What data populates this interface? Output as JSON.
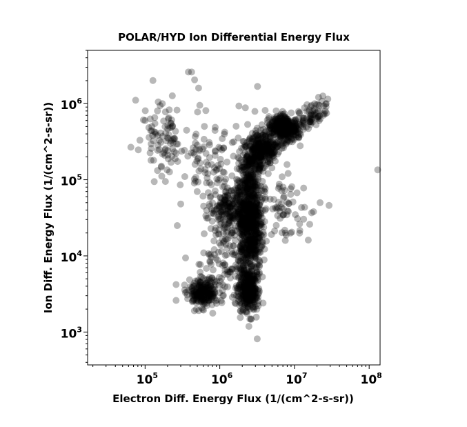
{
  "chart_data": {
    "type": "scatter",
    "title": "POLAR/HYD  Ion Differential Energy Flux",
    "xlabel": "Electron Diff. Energy Flux (1/(cm^2-s-sr))",
    "ylabel": "Ion Diff. Energy Flux (1/(cm^2-s-sr))",
    "xscale": "log",
    "yscale": "log",
    "xlim": [
      17000,
      140000000
    ],
    "ylim": [
      370,
      5000000
    ],
    "x_ticks": [
      {
        "value": 100000,
        "base": "10",
        "exp": "5"
      },
      {
        "value": 1000000,
        "base": "10",
        "exp": "6"
      },
      {
        "value": 10000000,
        "base": "10",
        "exp": "7"
      },
      {
        "value": 100000000,
        "base": "10",
        "exp": "8"
      }
    ],
    "y_ticks": [
      {
        "value": 1000,
        "base": "10",
        "exp": "3"
      },
      {
        "value": 10000,
        "base": "10",
        "exp": "4"
      },
      {
        "value": 100000,
        "base": "10",
        "exp": "5"
      },
      {
        "value": 1000000,
        "base": "10",
        "exp": "6"
      }
    ],
    "marker_color": "#000000",
    "marker_opacity": 0.28,
    "grid": false,
    "clusters": [
      {
        "x_center": 2500000,
        "x_spread": 0.18,
        "y_center": 30000,
        "y_spread": 0.9,
        "n": 900
      },
      {
        "x_center": 2400000,
        "x_spread": 0.12,
        "y_center": 3500,
        "y_spread": 0.25,
        "n": 320
      },
      {
        "x_center": 600000,
        "x_spread": 0.2,
        "y_center": 3300,
        "y_spread": 0.18,
        "n": 240
      },
      {
        "x_center": 1300000,
        "x_spread": 0.25,
        "y_center": 38000,
        "y_spread": 0.3,
        "n": 200
      },
      {
        "x_center": 7000000,
        "x_spread": 0.22,
        "y_center": 500000,
        "y_spread": 0.15,
        "n": 300
      },
      {
        "x_center": 3500000,
        "x_spread": 0.2,
        "y_center": 250000,
        "y_spread": 0.2,
        "n": 200
      },
      {
        "x_center": 180000,
        "x_spread": 0.3,
        "y_center": 300000,
        "y_spread": 0.5,
        "n": 90
      },
      {
        "x_center": 700000,
        "x_spread": 0.35,
        "y_center": 150000,
        "y_spread": 0.6,
        "n": 90
      },
      {
        "x_center": 8000000,
        "x_spread": 0.3,
        "y_center": 40000,
        "y_spread": 0.4,
        "n": 60
      },
      {
        "x_center": 1200000,
        "x_spread": 0.35,
        "y_center": 9000,
        "y_spread": 0.4,
        "n": 70
      }
    ],
    "points": [
      [
        100000,
        600000
      ],
      [
        95000,
        610000
      ],
      [
        380000,
        2600000
      ],
      [
        420000,
        2600000
      ],
      [
        460000,
        2050000
      ],
      [
        520000,
        1600000
      ],
      [
        3200000,
        1680000
      ],
      [
        1800000,
        930000
      ],
      [
        2200000,
        880000
      ],
      [
        24000000,
        1260000
      ],
      [
        28000000,
        1150000
      ],
      [
        21000000,
        1210000
      ],
      [
        130000000,
        135000
      ],
      [
        29000000,
        46000
      ],
      [
        22000000,
        50000
      ],
      [
        18000000,
        38000
      ],
      [
        16000000,
        26000
      ],
      [
        270000,
        25000
      ],
      [
        260000,
        4200
      ],
      [
        260000,
        2600
      ],
      [
        1900000,
        1900
      ],
      [
        2300000,
        1850
      ],
      [
        3800000,
        2400
      ],
      [
        150000,
        1050000
      ],
      [
        170000,
        1000000
      ],
      [
        650000,
        810000
      ],
      [
        540000,
        950000
      ],
      [
        120000,
        180000
      ],
      [
        340000,
        110000
      ],
      [
        300000,
        48000
      ]
    ]
  }
}
